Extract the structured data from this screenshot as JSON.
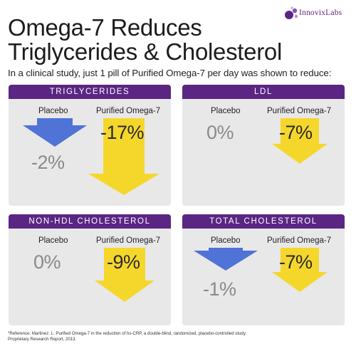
{
  "brand": {
    "name": "InnovixLabs",
    "accent": "#5b2583",
    "placebo_color": "#4f73d6",
    "omega_color": "#f5d72c"
  },
  "header": {
    "title_line1": "Omega-7 Reduces",
    "title_line2": "Triglycerides & Cholesterol",
    "subtitle": "In a clinical study, just 1 pill of Purified Omega-7 per day was shown to reduce:"
  },
  "panels": [
    {
      "title": "TRIGLYCERIDES",
      "placebo_label": "Placebo",
      "omega_label": "Purified Omega-7",
      "placebo_value": "-2%",
      "omega_value": "-17%",
      "placebo_change": -2,
      "omega_change": -17
    },
    {
      "title": "LDL",
      "placebo_label": "Placebo",
      "omega_label": "Purified Omega-7",
      "placebo_value": "0%",
      "omega_value": "-7%",
      "placebo_change": 0,
      "omega_change": -7
    },
    {
      "title": "NON-HDL CHOLESTEROL",
      "placebo_label": "Placebo",
      "omega_label": "Purified Omega-7",
      "placebo_value": "0%",
      "omega_value": "-9%",
      "placebo_change": 0,
      "omega_change": -9
    },
    {
      "title": "TOTAL CHOLESTEROL",
      "placebo_label": "Placebo",
      "omega_label": "Purified Omega-7",
      "placebo_value": "-1%",
      "omega_value": "-7%",
      "placebo_change": -1,
      "omega_change": -7
    }
  ],
  "footnote": {
    "line1": "*Reference: Martinez. L. Purified Omega-7 in the reduction of hs-CRP, a double-blind, randomized, placebo-controlled study.",
    "line2": "Proprietary Research Report, 2013."
  }
}
